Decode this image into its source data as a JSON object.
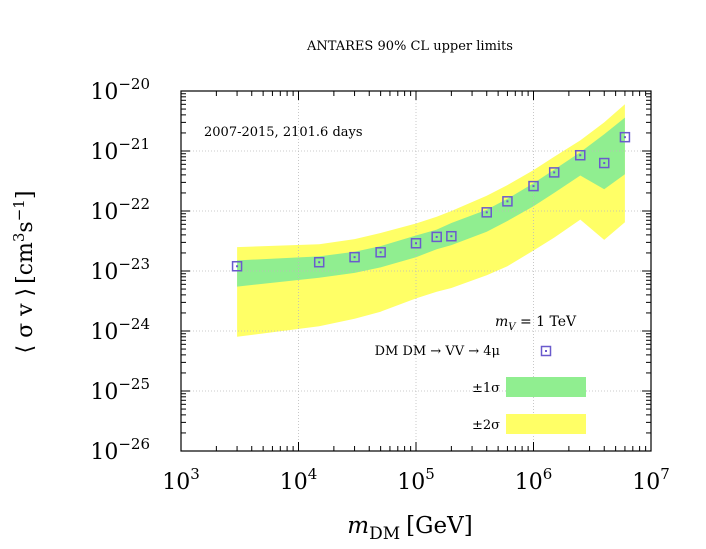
{
  "chart_data": {
    "type": "scatter",
    "title": "ANTARES 90% CL upper limits",
    "annotation": "2007-2015, 2101.6 days",
    "xlabel": {
      "main": "m",
      "sub": "DM",
      "unit": "[GeV]"
    },
    "ylabel": {
      "main": "⟨ σ v ⟩",
      "unit": "[cm",
      "exp1": "3",
      "mid": "s",
      "exp2": "−1",
      "close": "]"
    },
    "xscale": "log",
    "yscale": "log",
    "xlim": [
      1000,
      10000000
    ],
    "ylim": [
      1e-26,
      1e-20
    ],
    "grid": true,
    "x_ticks": [
      {
        "value": 1000,
        "base": "10",
        "exp": "3"
      },
      {
        "value": 10000,
        "base": "10",
        "exp": "4"
      },
      {
        "value": 100000,
        "base": "10",
        "exp": "5"
      },
      {
        "value": 1000000,
        "base": "10",
        "exp": "6"
      },
      {
        "value": 10000000,
        "base": "10",
        "exp": "7"
      }
    ],
    "y_ticks": [
      {
        "value": 1e-20,
        "base": "10",
        "exp": "−20"
      },
      {
        "value": 1e-21,
        "base": "10",
        "exp": "−21"
      },
      {
        "value": 1e-22,
        "base": "10",
        "exp": "−22"
      },
      {
        "value": 1e-23,
        "base": "10",
        "exp": "−23"
      },
      {
        "value": 1e-24,
        "base": "10",
        "exp": "−24"
      },
      {
        "value": 1e-25,
        "base": "10",
        "exp": "−25"
      },
      {
        "value": 1e-26,
        "base": "10",
        "exp": "−26"
      }
    ],
    "legend": {
      "position": "bottom-right",
      "header_main": "m",
      "header_sub": "V",
      "header_rest": " = 1 TeV",
      "items": [
        {
          "label": "DM DM → VV → 4μ",
          "kind": "marker",
          "color": "#6a5acd"
        },
        {
          "label": "±1σ",
          "kind": "band",
          "color": "#90ee90"
        },
        {
          "label": "±2σ",
          "kind": "band",
          "color": "#ffff66"
        }
      ]
    },
    "colors": {
      "marker": "#6a5acd",
      "band1": "#90ee90",
      "band2": "#ffff66",
      "axis": "#000000",
      "grid": "#bbbbbb"
    },
    "series": [
      {
        "name": "DM DM → VV → 4μ",
        "x": [
          3000,
          15000,
          30000,
          50000,
          100000,
          150000,
          200000,
          400000,
          600000,
          1000000,
          1500000,
          2500000,
          4000000,
          6000000
        ],
        "y": [
          1.2e-23,
          1.4e-23,
          1.7e-23,
          2.05e-23,
          2.9e-23,
          3.7e-23,
          3.8e-23,
          9.5e-23,
          1.45e-22,
          2.6e-22,
          4.4e-22,
          8.5e-22,
          6.3e-22,
          1.7e-21
        ]
      }
    ],
    "bands": [
      {
        "name": "±2σ",
        "x": [
          3000,
          15000,
          30000,
          50000,
          100000,
          150000,
          200000,
          400000,
          600000,
          1000000,
          1500000,
          2500000,
          4000000,
          6000000
        ],
        "upper": [
          2.5e-23,
          2.8e-23,
          3.4e-23,
          4.3e-23,
          6.2e-23,
          8e-23,
          1e-22,
          1.8e-22,
          2.7e-22,
          4.8e-22,
          8e-22,
          1.5e-21,
          3e-21,
          6e-21
        ],
        "lower": [
          8e-25,
          1.2e-24,
          1.6e-24,
          2.1e-24,
          3.5e-24,
          4.5e-24,
          5.2e-24,
          8.5e-24,
          1.2e-23,
          2.2e-23,
          3.6e-23,
          7.2e-23,
          3.3e-23,
          6.5e-23
        ]
      },
      {
        "name": "±1σ",
        "x": [
          3000,
          15000,
          30000,
          50000,
          100000,
          150000,
          200000,
          400000,
          600000,
          1000000,
          1500000,
          2500000,
          4000000,
          6000000
        ],
        "upper": [
          1.5e-23,
          1.75e-23,
          2.1e-23,
          2.6e-23,
          3.9e-23,
          4.9e-23,
          6.3e-23,
          1.05e-22,
          1.6e-22,
          2.9e-22,
          4.9e-22,
          9.5e-22,
          1.9e-21,
          3.6e-21
        ],
        "lower": [
          5.5e-24,
          7.7e-24,
          9.3e-24,
          1.15e-23,
          1.7e-23,
          2.3e-23,
          2.7e-23,
          4.5e-23,
          6.8e-23,
          1.2e-22,
          2e-22,
          3.9e-22,
          2.3e-22,
          4.1e-22
        ]
      }
    ]
  }
}
